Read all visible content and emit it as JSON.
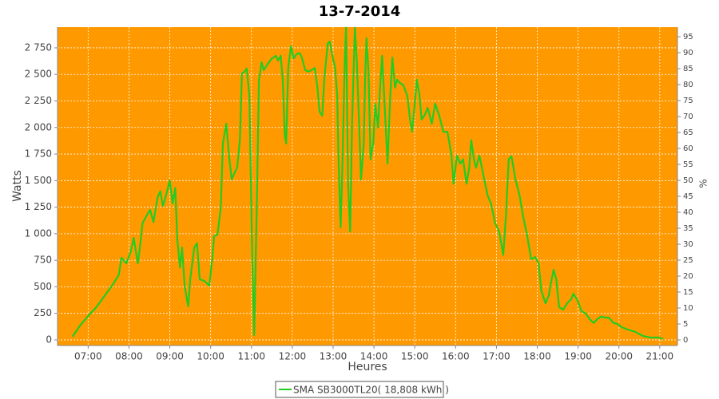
{
  "chart_data": {
    "type": "line",
    "title": "13-7-2014",
    "x_label": "Heures",
    "y_label": "Watts",
    "y2_label": "%",
    "x": [
      "06:37",
      "06:48",
      "07:00",
      "07:12",
      "07:23",
      "07:35",
      "07:45",
      "07:49",
      "07:56",
      "08:02",
      "08:07",
      "08:13",
      "08:16",
      "08:20",
      "08:26",
      "08:31",
      "08:36",
      "08:42",
      "08:46",
      "08:50",
      "08:55",
      "09:00",
      "09:04",
      "09:08",
      "09:11",
      "09:15",
      "09:18",
      "09:22",
      "09:27",
      "09:30",
      "09:36",
      "09:40",
      "09:44",
      "09:51",
      "09:58",
      "10:03",
      "10:05",
      "10:10",
      "10:15",
      "10:18",
      "10:23",
      "10:27",
      "10:31",
      "10:36",
      "10:39",
      "10:43",
      "10:46",
      "10:50",
      "10:53",
      "10:57",
      "11:01",
      "11:04",
      "11:08",
      "11:11",
      "11:15",
      "11:18",
      "11:24",
      "11:30",
      "11:36",
      "11:39",
      "11:43",
      "11:46",
      "11:49",
      "11:51",
      "11:54",
      "11:58",
      "12:02",
      "12:06",
      "12:11",
      "12:14",
      "12:19",
      "12:24",
      "12:28",
      "12:33",
      "12:37",
      "12:40",
      "12:44",
      "12:47",
      "12:52",
      "12:55",
      "12:59",
      "13:03",
      "13:06",
      "13:08",
      "13:11",
      "13:13",
      "13:17",
      "13:19",
      "13:22",
      "13:25",
      "13:28",
      "13:32",
      "13:35",
      "13:39",
      "13:41",
      "13:45",
      "13:47",
      "13:49",
      "13:52",
      "13:55",
      "13:59",
      "14:02",
      "14:06",
      "14:09",
      "14:12",
      "14:15",
      "14:20",
      "14:24",
      "14:27",
      "14:31",
      "14:34",
      "14:38",
      "14:43",
      "14:49",
      "14:53",
      "14:56",
      "15:00",
      "15:03",
      "15:07",
      "15:10",
      "15:14",
      "15:19",
      "15:25",
      "15:30",
      "15:36",
      "15:42",
      "15:48",
      "15:54",
      "15:57",
      "16:02",
      "16:07",
      "16:11",
      "16:16",
      "16:20",
      "16:23",
      "16:27",
      "16:30",
      "16:35",
      "16:41",
      "16:47",
      "16:52",
      "16:58",
      "17:04",
      "17:10",
      "17:14",
      "17:18",
      "17:22",
      "17:28",
      "17:34",
      "17:39",
      "17:45",
      "17:51",
      "17:57",
      "18:02",
      "18:06",
      "18:12",
      "18:17",
      "18:20",
      "18:24",
      "18:28",
      "18:32",
      "18:38",
      "18:44",
      "18:50",
      "18:53",
      "18:59",
      "19:05",
      "19:11",
      "19:17",
      "19:23",
      "19:28",
      "19:34",
      "19:40",
      "19:45",
      "19:52",
      "19:58",
      "20:04",
      "20:12",
      "20:24",
      "20:35",
      "20:47",
      "20:59",
      "21:05"
    ],
    "series": [
      {
        "name": "SMA SB3000TL20( 18,808 kWh )",
        "color": "#22cc22",
        "values": [
          30,
          135,
          225,
          308,
          405,
          510,
          610,
          775,
          720,
          820,
          960,
          720,
          870,
          1100,
          1170,
          1225,
          1110,
          1340,
          1400,
          1260,
          1375,
          1500,
          1285,
          1430,
          950,
          680,
          870,
          500,
          315,
          570,
          870,
          910,
          570,
          555,
          510,
          800,
          975,
          990,
          1250,
          1850,
          2035,
          1735,
          1510,
          1585,
          1620,
          1885,
          2510,
          2525,
          2555,
          2300,
          800,
          45,
          1320,
          2450,
          2615,
          2540,
          2600,
          2650,
          2675,
          2630,
          2675,
          2450,
          1925,
          1850,
          2560,
          2765,
          2650,
          2690,
          2700,
          2660,
          2540,
          2525,
          2540,
          2560,
          2375,
          2150,
          2110,
          2450,
          2790,
          2810,
          2675,
          2560,
          2300,
          1700,
          1060,
          1470,
          2600,
          2945,
          1470,
          1020,
          2075,
          2945,
          2600,
          1885,
          1510,
          1850,
          2450,
          2840,
          2525,
          1700,
          1850,
          2225,
          2000,
          2375,
          2675,
          2300,
          1660,
          2300,
          2660,
          2375,
          2450,
          2420,
          2400,
          2300,
          2075,
          1960,
          2225,
          2450,
          2300,
          2075,
          2110,
          2185,
          2035,
          2225,
          2110,
          1960,
          1960,
          1735,
          1470,
          1735,
          1660,
          1700,
          1470,
          1620,
          1880,
          1700,
          1620,
          1735,
          1545,
          1360,
          1285,
          1100,
          1020,
          800,
          1170,
          1700,
          1730,
          1510,
          1360,
          1170,
          985,
          760,
          780,
          720,
          460,
          345,
          420,
          535,
          660,
          570,
          310,
          285,
          345,
          385,
          435,
          375,
          270,
          250,
          195,
          160,
          195,
          220,
          210,
          210,
          160,
          150,
          120,
          100,
          75,
          38,
          22,
          22,
          8
        ]
      }
    ],
    "xlim": [
      "06:15",
      "21:26"
    ],
    "xticks": [
      "07:00",
      "08:00",
      "09:00",
      "10:00",
      "11:00",
      "12:00",
      "13:00",
      "14:00",
      "15:00",
      "16:00",
      "17:00",
      "18:00",
      "19:00",
      "20:00",
      "21:00"
    ],
    "ylim": [
      -53,
      2945
    ],
    "yticks": [
      0,
      250,
      500,
      750,
      {
        "value": 1000,
        "label": "1 000"
      },
      {
        "value": 1250,
        "label": "1 250"
      },
      {
        "value": 1500,
        "label": "1 500"
      },
      {
        "value": 1750,
        "label": "1 750"
      },
      {
        "value": 2000,
        "label": "2 000"
      },
      {
        "value": 2250,
        "label": "2 250"
      },
      {
        "value": 2500,
        "label": "2 500"
      },
      {
        "value": 2750,
        "label": "2 750"
      }
    ],
    "y2lim": [
      -1.75,
      98
    ],
    "y2ticks": [
      0,
      5,
      10,
      15,
      20,
      25,
      30,
      35,
      40,
      45,
      50,
      55,
      60,
      65,
      70,
      75,
      80,
      85,
      90,
      95
    ],
    "background": "#ff9900",
    "grid": true
  }
}
